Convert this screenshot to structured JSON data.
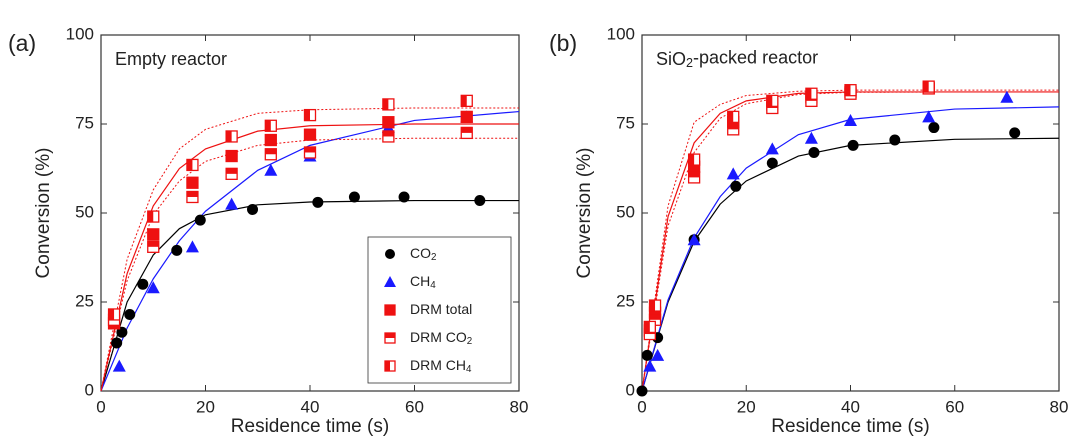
{
  "chart_data": [
    {
      "type": "scatter",
      "panel_label": "(a)",
      "annotation": "Empty reactor",
      "xlabel": "Residence time (s)",
      "ylabel": "Conversion (%)",
      "xlim": [
        0,
        80
      ],
      "ylim": [
        0,
        100
      ],
      "xticks": [
        0,
        20,
        40,
        60,
        80
      ],
      "yticks": [
        0,
        25,
        50,
        75,
        100
      ],
      "legend": "lower right",
      "series": [
        {
          "name": "CO2",
          "color": "#000000",
          "marker": "circle",
          "x": [
            3,
            4,
            5.5,
            8,
            14.5,
            19,
            29,
            41.5,
            48.5,
            58,
            72.5
          ],
          "values": [
            13.5,
            16.5,
            21.5,
            30,
            39.5,
            48,
            51,
            53,
            54.5,
            54.5,
            53.5
          ]
        },
        {
          "name": "CH4",
          "color": "#1a1aff",
          "marker": "triangle",
          "x": [
            3.5,
            10,
            17.5,
            25,
            32.5,
            40,
            55,
            70
          ],
          "values": [
            7,
            29,
            40.5,
            52.5,
            62,
            66,
            74,
            77
          ]
        },
        {
          "name": "DRM total",
          "color": "#ee1111",
          "marker": "square",
          "x": [
            2.5,
            10,
            17.5,
            25,
            32.5,
            40,
            55,
            70
          ],
          "values": [
            19,
            44,
            58.5,
            66,
            70.5,
            72,
            75.5,
            77
          ]
        },
        {
          "name": "DRM CO2",
          "color": "#ee1111",
          "marker": "half-top",
          "x": [
            2.5,
            10,
            17.5,
            25,
            32.5,
            40,
            55,
            70
          ],
          "values": [
            20,
            40.5,
            54.5,
            61,
            66.5,
            67,
            71.5,
            72.5
          ]
        },
        {
          "name": "DRM CH4",
          "color": "#ee1111",
          "marker": "half-left",
          "x": [
            2.5,
            10,
            17.5,
            25,
            32.5,
            40,
            55,
            70
          ],
          "values": [
            21.5,
            49,
            63.5,
            71.5,
            74.5,
            77.5,
            80.5,
            81.5
          ]
        }
      ],
      "fit_lines": [
        {
          "color": "#000000",
          "dash": false,
          "x": [
            0,
            5,
            10,
            15,
            20,
            30,
            40,
            60,
            80
          ],
          "values": [
            0,
            25,
            38.2,
            45.6,
            49.5,
            52.3,
            53.1,
            53.5,
            53.5
          ]
        },
        {
          "color": "#1a1aff",
          "dash": false,
          "x": [
            0,
            5,
            10,
            15,
            20,
            30,
            40,
            60,
            80
          ],
          "values": [
            0,
            17.7,
            31.5,
            42.2,
            50.5,
            62,
            69,
            76,
            78.5
          ]
        },
        {
          "color": "#ee1111",
          "dash": false,
          "x": [
            0,
            5,
            10,
            15,
            20,
            30,
            40,
            60,
            80
          ],
          "values": [
            0,
            33,
            52,
            62.5,
            68,
            73,
            74.5,
            75,
            75
          ]
        },
        {
          "color": "#ee1111",
          "dash": true,
          "x": [
            0,
            5,
            10,
            15,
            20,
            30,
            40,
            60,
            80
          ],
          "values": [
            0,
            31,
            49.5,
            59,
            64.5,
            69,
            70.5,
            71,
            71
          ]
        },
        {
          "color": "#ee1111",
          "dash": true,
          "x": [
            0,
            5,
            10,
            15,
            20,
            30,
            40,
            60,
            80
          ],
          "values": [
            0,
            37,
            56.5,
            68,
            73.5,
            78,
            79,
            79.5,
            79.5
          ]
        }
      ]
    },
    {
      "type": "scatter",
      "panel_label": "(b)",
      "annotation": "SiO2-packed reactor",
      "xlabel": "Residence time (s)",
      "ylabel": "Conversion (%)",
      "xlim": [
        0,
        80
      ],
      "ylim": [
        0,
        100
      ],
      "xticks": [
        0,
        20,
        40,
        60,
        80
      ],
      "yticks": [
        0,
        25,
        50,
        75,
        100
      ],
      "series": [
        {
          "color": "#000000",
          "marker": "circle",
          "x": [
            0,
            1,
            3,
            10,
            18,
            25,
            33,
            40.5,
            48.5,
            56,
            71.5
          ],
          "values": [
            0,
            10,
            15,
            42.5,
            57.5,
            64,
            67,
            69,
            70.5,
            74,
            72.5
          ]
        },
        {
          "color": "#1a1aff",
          "marker": "triangle",
          "x": [
            1.5,
            3,
            10,
            17.5,
            25,
            32.5,
            40,
            55,
            70
          ],
          "values": [
            7,
            10,
            42.5,
            61,
            68,
            71,
            76,
            77,
            82.5
          ]
        },
        {
          "color": "#ee1111",
          "marker": "square",
          "x": [
            1.5,
            2.5,
            10,
            17.5,
            25,
            32.5,
            40,
            55
          ],
          "values": [
            17,
            22,
            63,
            75.5,
            80.5,
            82.5,
            84,
            85
          ]
        },
        {
          "color": "#ee1111",
          "marker": "half-top",
          "x": [
            1.5,
            2.5,
            10,
            17.5,
            25,
            32.5,
            40,
            55
          ],
          "values": [
            16,
            20,
            60,
            73.5,
            79.5,
            81.5,
            83.5,
            85
          ]
        },
        {
          "color": "#ee1111",
          "marker": "half-left",
          "x": [
            1.5,
            2.5,
            10,
            17.5,
            25,
            32.5,
            40,
            55
          ],
          "values": [
            18,
            24,
            65,
            77,
            81.5,
            83.5,
            84.5,
            85.5
          ]
        }
      ],
      "fit_lines": [
        {
          "color": "#000000",
          "dash": false,
          "x": [
            0,
            5,
            10,
            15,
            20,
            30,
            40,
            60,
            80
          ],
          "values": [
            0,
            25,
            42,
            52.5,
            59,
            66,
            69,
            70.7,
            71
          ]
        },
        {
          "color": "#1a1aff",
          "dash": false,
          "x": [
            0,
            5,
            10,
            15,
            20,
            30,
            40,
            60,
            80
          ],
          "values": [
            0,
            25.6,
            43,
            54.6,
            62.6,
            72,
            76.3,
            79.2,
            79.8
          ]
        },
        {
          "color": "#ee1111",
          "dash": false,
          "x": [
            0,
            5,
            10,
            15,
            20,
            30,
            40,
            60,
            80
          ],
          "values": [
            0,
            49,
            69.7,
            78,
            81.5,
            83.6,
            84,
            84,
            84
          ]
        },
        {
          "color": "#ee1111",
          "dash": true,
          "x": [
            0,
            5,
            10,
            15,
            20,
            30,
            40,
            60,
            80
          ],
          "values": [
            0,
            46.4,
            67,
            76.6,
            80.7,
            83.3,
            83.9,
            84,
            84
          ]
        },
        {
          "color": "#ee1111",
          "dash": true,
          "x": [
            0,
            5,
            10,
            15,
            20,
            30,
            40,
            60,
            80
          ],
          "values": [
            0,
            52,
            75.5,
            80.5,
            83,
            84.2,
            84.5,
            84.5,
            84.5
          ]
        }
      ]
    }
  ]
}
